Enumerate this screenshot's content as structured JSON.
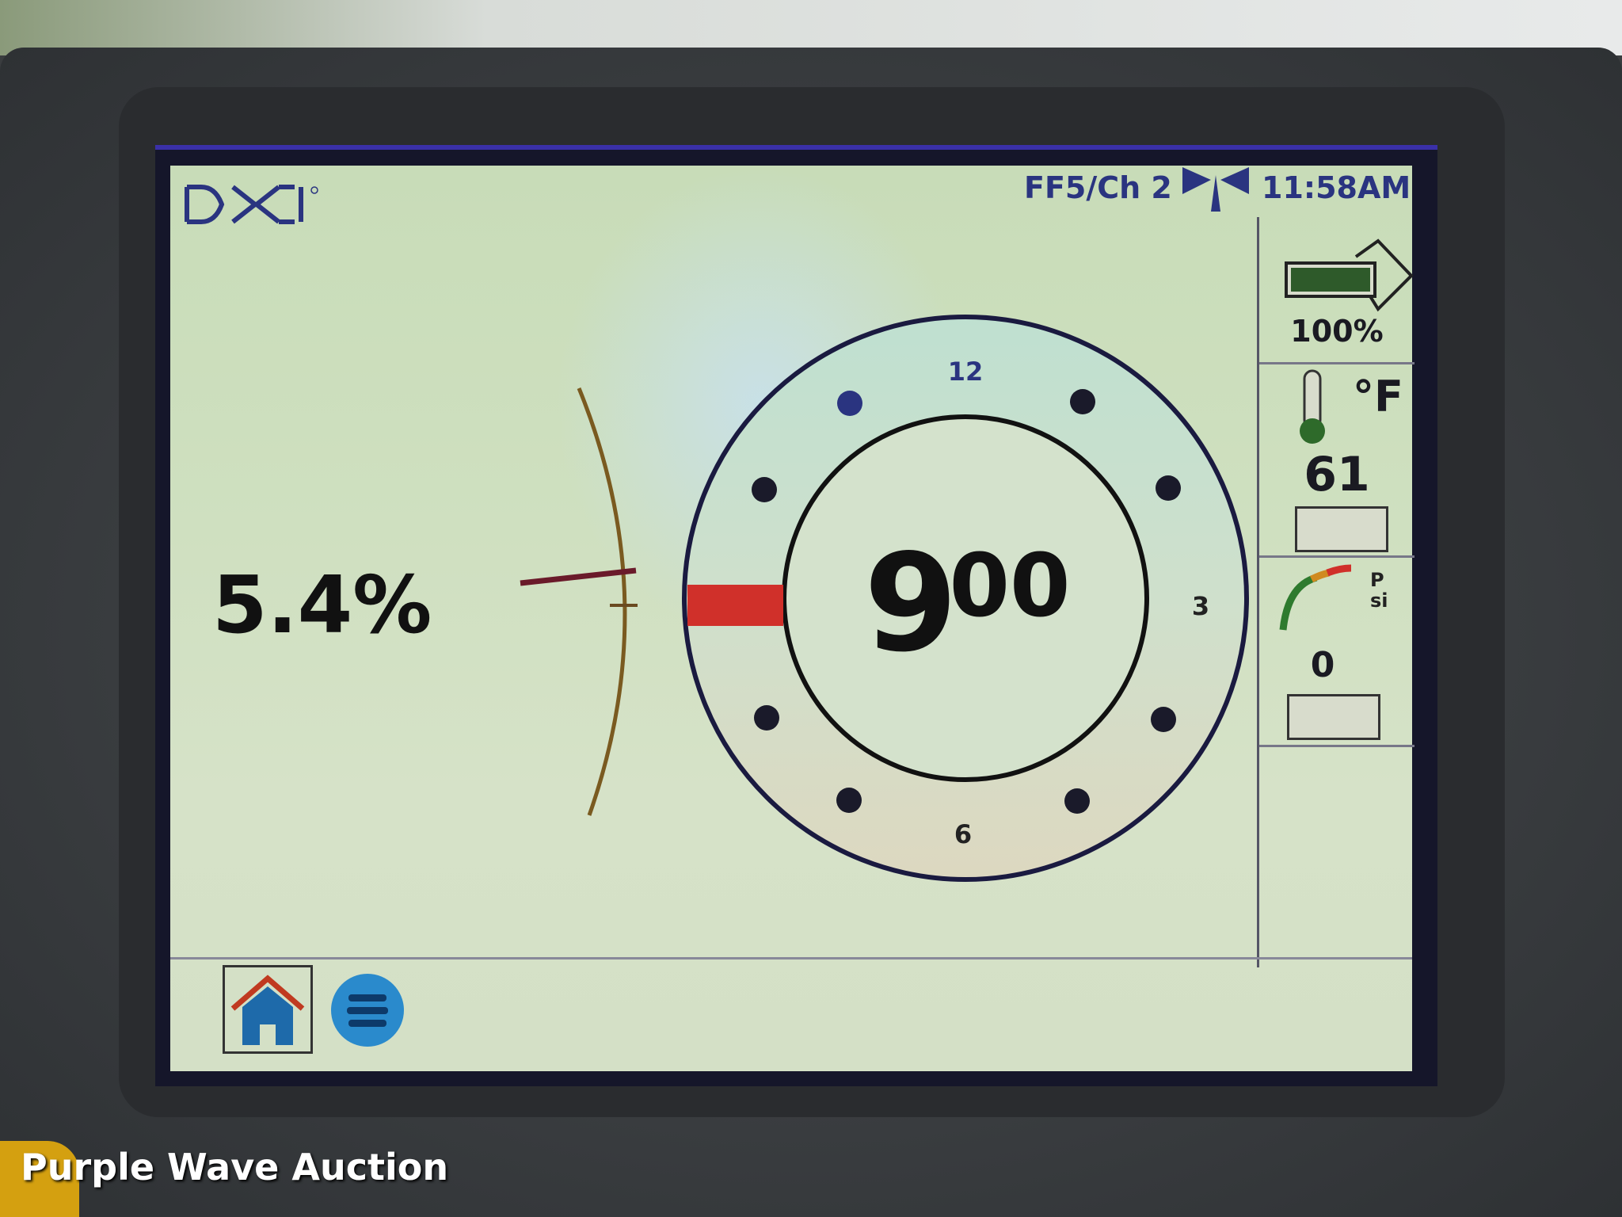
{
  "header": {
    "logo": "DCI",
    "channel": "FF5/Ch 2",
    "signal_icon": "antenna-icon",
    "time": "11:58AM"
  },
  "main": {
    "pitch_percent": "5.4%",
    "roll_clock": {
      "hour": "9",
      "minutes": "00",
      "labels": [
        "12",
        "3",
        "6"
      ]
    }
  },
  "side_panel": {
    "battery": {
      "icon": "battery-icon",
      "value": "100%",
      "level": 1.0
    },
    "temperature": {
      "icon": "thermometer-icon",
      "unit": "°F",
      "value": "61"
    },
    "pressure": {
      "icon": "pressure-gauge-icon",
      "unit": "Psi",
      "value": "0"
    }
  },
  "bottom_bar": {
    "home_icon": "home-icon",
    "menu_icon": "menu-icon"
  },
  "watermark": "Purple Wave Auction",
  "colors": {
    "roll_indicator": "#d0302a",
    "battery": "#2e5a2a",
    "text": "#2a3480"
  }
}
